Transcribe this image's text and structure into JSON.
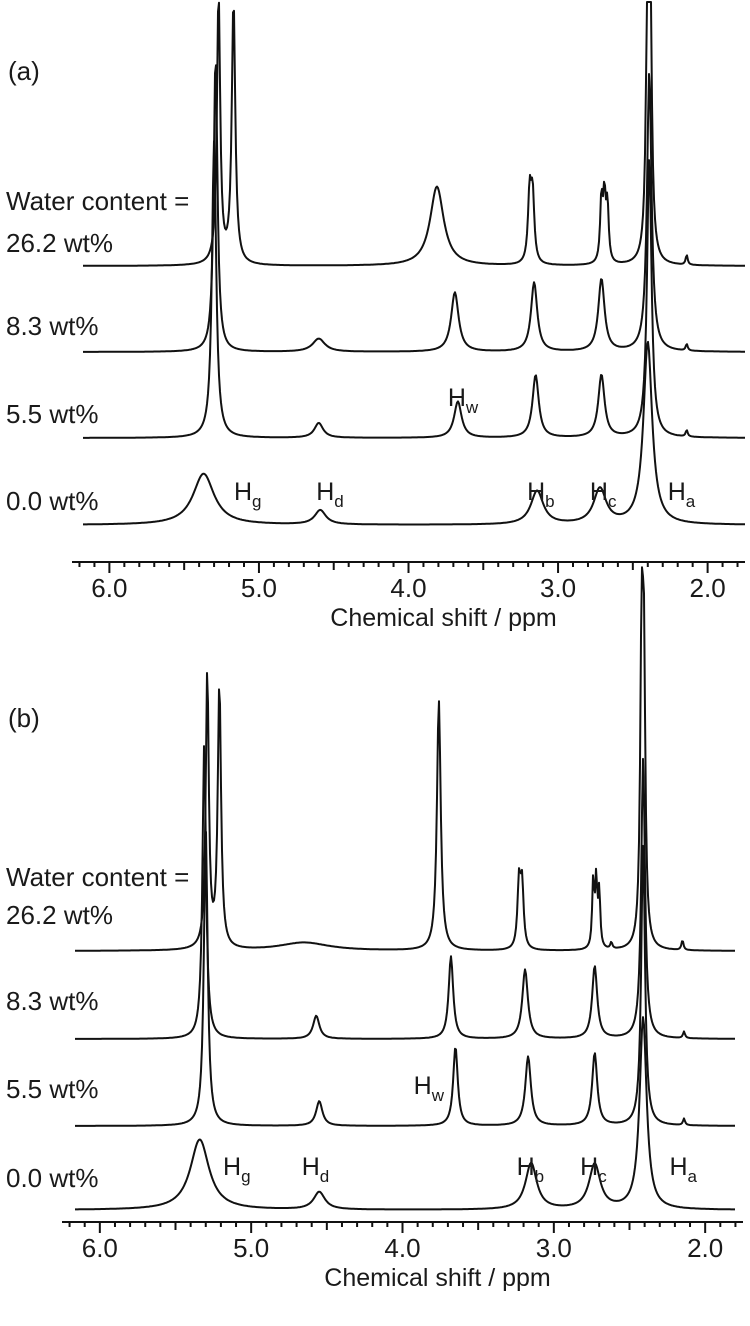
{
  "chart_data": [
    {
      "type": "line",
      "panel_label": "(a)",
      "xlabel": "Chemical shift / ppm",
      "ylabel": "",
      "x_axis_reversed": true,
      "xlim": [
        6.25,
        1.75
      ],
      "ticks": [
        {
          "value": 6.0,
          "label": "6.0"
        },
        {
          "value": 5.0,
          "label": "5.0"
        },
        {
          "value": 4.0,
          "label": "4.0"
        },
        {
          "value": 3.0,
          "label": "3.0"
        },
        {
          "value": 2.0,
          "label": "2.0"
        }
      ],
      "label_intro": "Water content =",
      "series": [
        {
          "name": "26.2 wt%",
          "peaks": [
            {
              "shift": 5.27,
              "intensity": 8.2,
              "width": 0.013
            },
            {
              "shift": 5.17,
              "intensity": 8.0,
              "width": 0.014
            },
            {
              "shift": 3.81,
              "intensity": 2.4,
              "width": 0.055
            },
            {
              "shift": 3.19,
              "intensity": 2.1,
              "width": 0.013
            },
            {
              "shift": 3.17,
              "intensity": 2.0,
              "width": 0.013
            },
            {
              "shift": 2.71,
              "intensity": 1.9,
              "width": 0.01
            },
            {
              "shift": 2.69,
              "intensity": 1.9,
              "width": 0.01
            },
            {
              "shift": 2.67,
              "intensity": 1.7,
              "width": 0.01
            },
            {
              "shift": 2.4,
              "intensity": 8.5,
              "width": 0.012
            },
            {
              "shift": 2.385,
              "intensity": 8.0,
              "width": 0.012
            },
            {
              "shift": 2.14,
              "intensity": 0.3,
              "width": 0.008
            }
          ]
        },
        {
          "name": "8.3 wt%",
          "peaks": [
            {
              "shift": 5.29,
              "intensity": 9.0,
              "width": 0.015
            },
            {
              "shift": 4.6,
              "intensity": 0.4,
              "width": 0.05
            },
            {
              "shift": 3.69,
              "intensity": 1.8,
              "width": 0.03
            },
            {
              "shift": 3.16,
              "intensity": 2.1,
              "width": 0.025
            },
            {
              "shift": 2.71,
              "intensity": 2.2,
              "width": 0.025
            },
            {
              "shift": 2.39,
              "intensity": 8.5,
              "width": 0.018
            },
            {
              "shift": 2.14,
              "intensity": 0.2,
              "width": 0.008
            }
          ]
        },
        {
          "name": "5.5 wt%",
          "peaks": [
            {
              "shift": 5.3,
              "intensity": 9.0,
              "width": 0.017
            },
            {
              "shift": 4.6,
              "intensity": 0.45,
              "width": 0.035
            },
            {
              "shift": 3.67,
              "intensity": 1.1,
              "width": 0.03
            },
            {
              "shift": 3.15,
              "intensity": 1.9,
              "width": 0.025
            },
            {
              "shift": 2.71,
              "intensity": 1.9,
              "width": 0.025
            },
            {
              "shift": 2.39,
              "intensity": 8.5,
              "width": 0.018
            },
            {
              "shift": 2.14,
              "intensity": 0.2,
              "width": 0.008
            }
          ]
        },
        {
          "name": "0.0 wt%",
          "peaks": [
            {
              "shift": 5.37,
              "intensity": 1.6,
              "width": 0.085
            },
            {
              "shift": 4.59,
              "intensity": 0.45,
              "width": 0.045
            },
            {
              "shift": 3.14,
              "intensity": 1.05,
              "width": 0.05
            },
            {
              "shift": 2.72,
              "intensity": 1.1,
              "width": 0.05
            },
            {
              "shift": 2.4,
              "intensity": 5.7,
              "width": 0.035
            }
          ]
        }
      ],
      "peak_labels": [
        {
          "main": "H",
          "sub": "g",
          "shift": 5.1,
          "series": "0.0 wt%"
        },
        {
          "main": "H",
          "sub": "d",
          "shift": 4.55,
          "series": "0.0 wt%"
        },
        {
          "main": "H",
          "sub": "w",
          "shift": 3.67,
          "series": "5.5 wt%"
        },
        {
          "main": "H",
          "sub": "b",
          "shift": 3.14,
          "series": "0.0 wt%"
        },
        {
          "main": "H",
          "sub": "c",
          "shift": 2.72,
          "series": "0.0 wt%"
        },
        {
          "main": "H",
          "sub": "a",
          "shift": 2.2,
          "series": "0.0 wt%"
        }
      ]
    },
    {
      "type": "line",
      "panel_label": "(b)",
      "xlabel": "Chemical shift / ppm",
      "ylabel": "",
      "x_axis_reversed": true,
      "xlim": [
        6.25,
        1.75
      ],
      "ticks": [
        {
          "value": 6.0,
          "label": "6.0"
        },
        {
          "value": 5.0,
          "label": "5.0"
        },
        {
          "value": 4.0,
          "label": "4.0"
        },
        {
          "value": 3.0,
          "label": "3.0"
        },
        {
          "value": 2.0,
          "label": "2.0"
        }
      ],
      "label_intro": "Water content =",
      "series": [
        {
          "name": "26.2 wt%",
          "peaks": [
            {
              "shift": 5.29,
              "intensity": 8.4,
              "width": 0.012
            },
            {
              "shift": 5.21,
              "intensity": 8.0,
              "width": 0.013
            },
            {
              "shift": 4.65,
              "intensity": 0.25,
              "width": 0.2
            },
            {
              "shift": 3.76,
              "intensity": 7.6,
              "width": 0.015
            },
            {
              "shift": 3.23,
              "intensity": 2.0,
              "width": 0.012
            },
            {
              "shift": 3.21,
              "intensity": 1.9,
              "width": 0.012
            },
            {
              "shift": 2.74,
              "intensity": 2.0,
              "width": 0.008
            },
            {
              "shift": 2.72,
              "intensity": 2.0,
              "width": 0.008
            },
            {
              "shift": 2.7,
              "intensity": 1.7,
              "width": 0.008
            },
            {
              "shift": 2.62,
              "intensity": 0.2,
              "width": 0.008
            },
            {
              "shift": 2.42,
              "intensity": 8.5,
              "width": 0.011
            },
            {
              "shift": 2.405,
              "intensity": 8.1,
              "width": 0.011
            },
            {
              "shift": 2.15,
              "intensity": 0.3,
              "width": 0.008
            }
          ]
        },
        {
          "name": "8.3 wt%",
          "peaks": [
            {
              "shift": 5.31,
              "intensity": 9.0,
              "width": 0.014
            },
            {
              "shift": 4.57,
              "intensity": 0.7,
              "width": 0.025
            },
            {
              "shift": 3.68,
              "intensity": 2.5,
              "width": 0.018
            },
            {
              "shift": 3.19,
              "intensity": 2.1,
              "width": 0.022
            },
            {
              "shift": 2.73,
              "intensity": 2.2,
              "width": 0.02
            },
            {
              "shift": 2.41,
              "intensity": 8.5,
              "width": 0.015
            },
            {
              "shift": 2.14,
              "intensity": 0.2,
              "width": 0.008
            }
          ]
        },
        {
          "name": "5.5 wt%",
          "peaks": [
            {
              "shift": 5.3,
              "intensity": 9.0,
              "width": 0.015
            },
            {
              "shift": 4.55,
              "intensity": 0.75,
              "width": 0.025
            },
            {
              "shift": 3.65,
              "intensity": 2.4,
              "width": 0.018
            },
            {
              "shift": 3.17,
              "intensity": 2.1,
              "width": 0.022
            },
            {
              "shift": 2.73,
              "intensity": 2.2,
              "width": 0.02
            },
            {
              "shift": 2.41,
              "intensity": 8.5,
              "width": 0.015
            },
            {
              "shift": 2.14,
              "intensity": 0.2,
              "width": 0.008
            }
          ]
        },
        {
          "name": "0.0 wt%",
          "peaks": [
            {
              "shift": 5.34,
              "intensity": 2.2,
              "width": 0.075
            },
            {
              "shift": 4.55,
              "intensity": 0.55,
              "width": 0.045
            },
            {
              "shift": 3.15,
              "intensity": 1.45,
              "width": 0.045
            },
            {
              "shift": 2.73,
              "intensity": 1.4,
              "width": 0.045
            },
            {
              "shift": 2.41,
              "intensity": 6.0,
              "width": 0.028
            }
          ]
        }
      ],
      "peak_labels": [
        {
          "main": "H",
          "sub": "g",
          "shift": 5.12,
          "series": "0.0 wt%"
        },
        {
          "main": "H",
          "sub": "d",
          "shift": 4.6,
          "series": "0.0 wt%"
        },
        {
          "main": "H",
          "sub": "w",
          "shift": 3.86,
          "series": "5.5 wt%"
        },
        {
          "main": "H",
          "sub": "b",
          "shift": 3.18,
          "series": "0.0 wt%"
        },
        {
          "main": "H",
          "sub": "c",
          "shift": 2.76,
          "series": "0.0 wt%"
        },
        {
          "main": "H",
          "sub": "a",
          "shift": 2.17,
          "series": "0.0 wt%"
        }
      ]
    }
  ]
}
